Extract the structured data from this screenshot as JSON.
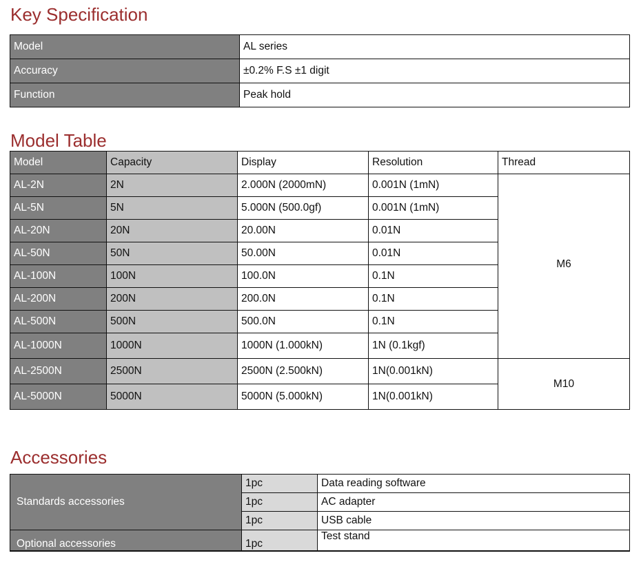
{
  "key_spec": {
    "title": "Key Specification",
    "rows": [
      {
        "label": "Model",
        "value": "AL series"
      },
      {
        "label": "Accuracy",
        "value": "±0.2% F.S  ±1 digit"
      },
      {
        "label": "Function",
        "value": "Peak hold"
      }
    ]
  },
  "model_table": {
    "title": "Model Table",
    "headers": [
      "Model",
      "Capacity",
      "Display",
      "Resolution",
      "Thread"
    ],
    "rows": [
      [
        "AL-2N",
        "2N",
        "2.000N (2000mN)",
        "0.001N (1mN)"
      ],
      [
        "AL-5N",
        "5N",
        "5.000N (500.0gf)",
        "0.001N (1mN)"
      ],
      [
        "AL-20N",
        "20N",
        "20.00N",
        "0.01N"
      ],
      [
        "AL-50N",
        "50N",
        "50.00N",
        "0.01N"
      ],
      [
        "AL-100N",
        "100N",
        "100.0N",
        "0.1N"
      ],
      [
        "AL-200N",
        "200N",
        "200.0N",
        "0.1N"
      ],
      [
        "AL-500N",
        "500N",
        "500.0N",
        "0.1N"
      ],
      [
        "AL-1000N",
        "1000N",
        "1000N (1.000kN)",
        "1N (0.1kgf)"
      ],
      [
        "AL-2500N",
        "2500N",
        "2500N (2.500kN)",
        "1N(0.001kN)"
      ],
      [
        "AL-5000N",
        "5000N",
        "5000N (5.000kN)",
        "1N(0.001kN)"
      ]
    ],
    "threads": [
      "M6",
      "M10"
    ]
  },
  "accessories": {
    "title": "Accessories",
    "standard_label": "Standards accessories",
    "optional_label": "Optional  accessories",
    "items": [
      {
        "qty": "1pc",
        "name": "Data reading software"
      },
      {
        "qty": "1pc",
        "name": "AC adapter"
      },
      {
        "qty": "1pc",
        "name": "USB cable"
      },
      {
        "qty": "1pc",
        "name": "Test stand"
      }
    ]
  },
  "colors": {
    "title": "#9b2e2e",
    "dark_cell": "#808080",
    "light_cell": "#c0c0c0",
    "qty_cell": "#d9d9d9"
  }
}
